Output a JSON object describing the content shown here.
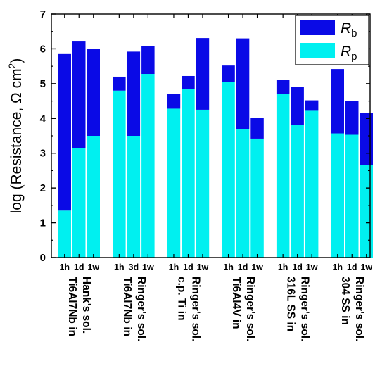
{
  "chart_data": {
    "type": "bar",
    "stacked": true,
    "ylabel_prefix": "log (Resistance, Ω cm",
    "ylabel_sup": "2",
    "ylabel_suffix": ")",
    "ylim": [
      0,
      7
    ],
    "yticks": [
      "0",
      "1",
      "2",
      "3",
      "4",
      "5",
      "6",
      "7"
    ],
    "legend": {
      "position": "top-right",
      "entries": [
        {
          "key": "Rb",
          "symbol": "R",
          "subscript": "b",
          "color": "#0a0ae6"
        },
        {
          "key": "Rp",
          "symbol": "R",
          "subscript": "p",
          "color": "#00f0f0"
        }
      ]
    },
    "groups": [
      {
        "label_lines": [
          "Ti6Al7Nb in",
          "Hank's sol."
        ],
        "bars": [
          {
            "label": "1h",
            "Rp": 1.35,
            "total": 5.85
          },
          {
            "label": "1d",
            "Rp": 3.15,
            "total": 6.23
          },
          {
            "label": "1w",
            "Rp": 3.5,
            "total": 6.0
          }
        ]
      },
      {
        "label_lines": [
          "Ti6Al7Nb in",
          "Ringer's sol."
        ],
        "bars": [
          {
            "label": "1h",
            "Rp": 4.8,
            "total": 5.2
          },
          {
            "label": "3d",
            "Rp": 3.5,
            "total": 5.92
          },
          {
            "label": "1w",
            "Rp": 5.28,
            "total": 6.07
          }
        ]
      },
      {
        "label_lines": [
          "c.p. Ti in",
          "Ringer's sol."
        ],
        "bars": [
          {
            "label": "1h",
            "Rp": 4.28,
            "total": 4.7
          },
          {
            "label": "1d",
            "Rp": 4.85,
            "total": 5.22
          },
          {
            "label": "1w",
            "Rp": 4.25,
            "total": 6.31
          }
        ]
      },
      {
        "label_lines": [
          "Ti6Al4V in",
          "Ringer's sol."
        ],
        "bars": [
          {
            "label": "1h",
            "Rp": 5.05,
            "total": 5.52
          },
          {
            "label": "1d",
            "Rp": 3.7,
            "total": 6.3
          },
          {
            "label": "1w",
            "Rp": 3.42,
            "total": 4.02
          }
        ]
      },
      {
        "label_lines": [
          "316L SS in",
          "Ringer's sol."
        ],
        "bars": [
          {
            "label": "1h",
            "Rp": 4.7,
            "total": 5.1
          },
          {
            "label": "1d",
            "Rp": 3.82,
            "total": 4.9
          },
          {
            "label": "1w",
            "Rp": 4.22,
            "total": 4.52
          }
        ]
      },
      {
        "label_lines": [
          "304 SS in",
          "Ringer's sol."
        ],
        "bars": [
          {
            "label": "1h",
            "Rp": 3.57,
            "total": 5.42
          },
          {
            "label": "1d",
            "Rp": 3.53,
            "total": 4.5
          },
          {
            "label": "1w",
            "Rp": 2.66,
            "total": 4.16
          }
        ]
      }
    ]
  }
}
